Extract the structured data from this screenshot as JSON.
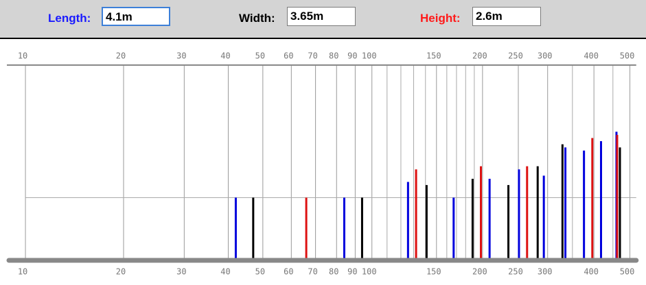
{
  "inputs": [
    {
      "label": "Length:",
      "value": "4.1m",
      "color": "#1a1aff"
    },
    {
      "label": "Width:",
      "value": "3.65m",
      "color": "#000000"
    },
    {
      "label": "Height:",
      "value": "2.6m",
      "color": "#ff1a1a"
    }
  ],
  "chart_data": {
    "type": "bar",
    "log_x": true,
    "xlim": [
      10,
      520
    ],
    "xticks": [
      10,
      20,
      30,
      40,
      50,
      60,
      70,
      80,
      90,
      100,
      150,
      200,
      250,
      300,
      400,
      500
    ],
    "x_minor_grid": [
      110,
      120,
      130,
      140,
      160,
      170,
      180,
      190,
      350,
      450
    ],
    "ylim": [
      0,
      3.2
    ],
    "y_grid": [
      1
    ],
    "series": [
      {
        "color": "#0000dd",
        "x": [
          42,
          84,
          125.5,
          167,
          209,
          251,
          293,
          335,
          376,
          418,
          460
        ],
        "values": [
          1,
          1,
          1.25,
          1,
          1.3,
          1.45,
          1.35,
          1.8,
          1.75,
          1.9,
          2.05
        ]
      },
      {
        "color": "#000000",
        "x": [
          47,
          94,
          141,
          188,
          235,
          282,
          329,
          470
        ],
        "values": [
          1,
          1,
          1.2,
          1.3,
          1.2,
          1.5,
          1.85,
          1.8
        ]
      },
      {
        "color": "#dd1111",
        "x": [
          66,
          132,
          198,
          264,
          396,
          462
        ],
        "values": [
          1,
          1.45,
          1.5,
          1.5,
          1.95,
          2.0
        ]
      }
    ]
  }
}
